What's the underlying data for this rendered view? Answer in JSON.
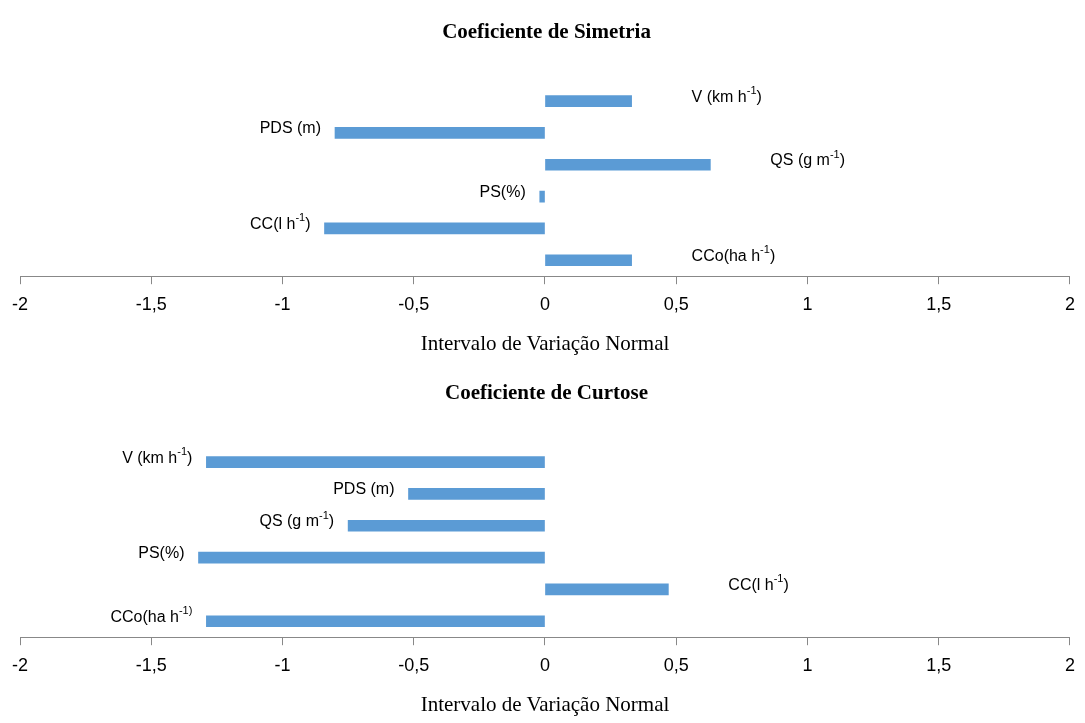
{
  "chart_data": [
    {
      "type": "bar",
      "orientation": "horizontal",
      "title": "Coeficiente de Simetria",
      "xlabel": "Intervalo de Variação Normal",
      "categories": [
        "V (km h$^{-1}$)",
        "PDS (m)",
        "QS (g m$^{-1}$)",
        "PS(%)",
        "CC(l h$^{-1}$)",
        "CCo(ha h$^{-1}$)"
      ],
      "values": [
        0.33,
        -0.8,
        0.63,
        -0.02,
        -0.84,
        0.33
      ],
      "color": "#5b9bd5",
      "xlim": [
        -2,
        2
      ],
      "xticks": [
        -2,
        {
          "value": -1.5,
          "label": "-1,5"
        },
        -1,
        {
          "value": -0.5,
          "label": "-0,5"
        },
        0,
        {
          "value": 0.5,
          "label": "0,5"
        },
        1,
        {
          "value": 1.5,
          "label": "1,5"
        },
        2
      ],
      "grid": false,
      "legend": false,
      "tick_labels": "x"
    },
    {
      "type": "bar",
      "orientation": "horizontal",
      "title": "Coeficiente de Curtose",
      "xlabel": "Intervalo de Variação Normal",
      "categories": [
        "V (km h$^{-1}$)",
        "PDS (m)",
        "QS (g m$^{-1}$)",
        "PS(%)",
        "CC(l h$^{-1}$)",
        "CCo(ha h$^{-1)}$"
      ],
      "values": [
        -1.29,
        -0.52,
        -0.75,
        -1.32,
        0.47,
        -1.29
      ],
      "color": "#5b9bd5",
      "xlim": [
        -2,
        2
      ],
      "xticks": [
        -2,
        {
          "value": -1.5,
          "label": "-1,5"
        },
        -1,
        {
          "value": -0.5,
          "label": "-0,5"
        },
        0,
        {
          "value": 0.5,
          "label": "0,5"
        },
        1,
        {
          "value": 1.5,
          "label": "1,5"
        },
        2
      ],
      "grid": false,
      "legend": false,
      "tick_labels": "x"
    }
  ]
}
